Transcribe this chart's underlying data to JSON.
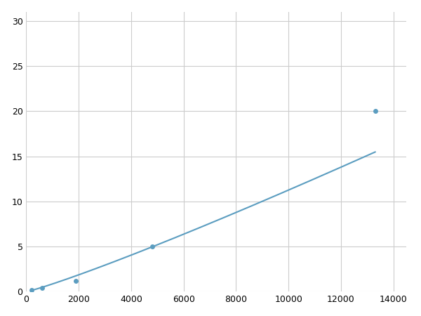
{
  "x": [
    200,
    600,
    1900,
    4800,
    13300
  ],
  "y": [
    0.2,
    0.4,
    1.2,
    5.0,
    20.0
  ],
  "line_color": "#5b9dc0",
  "marker_color": "#5b9dc0",
  "marker_size": 5,
  "line_width": 1.5,
  "xlim": [
    0,
    14500
  ],
  "ylim": [
    0,
    31
  ],
  "xticks": [
    0,
    2000,
    4000,
    6000,
    8000,
    10000,
    12000,
    14000
  ],
  "yticks": [
    0,
    5,
    10,
    15,
    20,
    25,
    30
  ],
  "grid_color": "#cccccc",
  "background_color": "#ffffff",
  "tick_fontsize": 9
}
